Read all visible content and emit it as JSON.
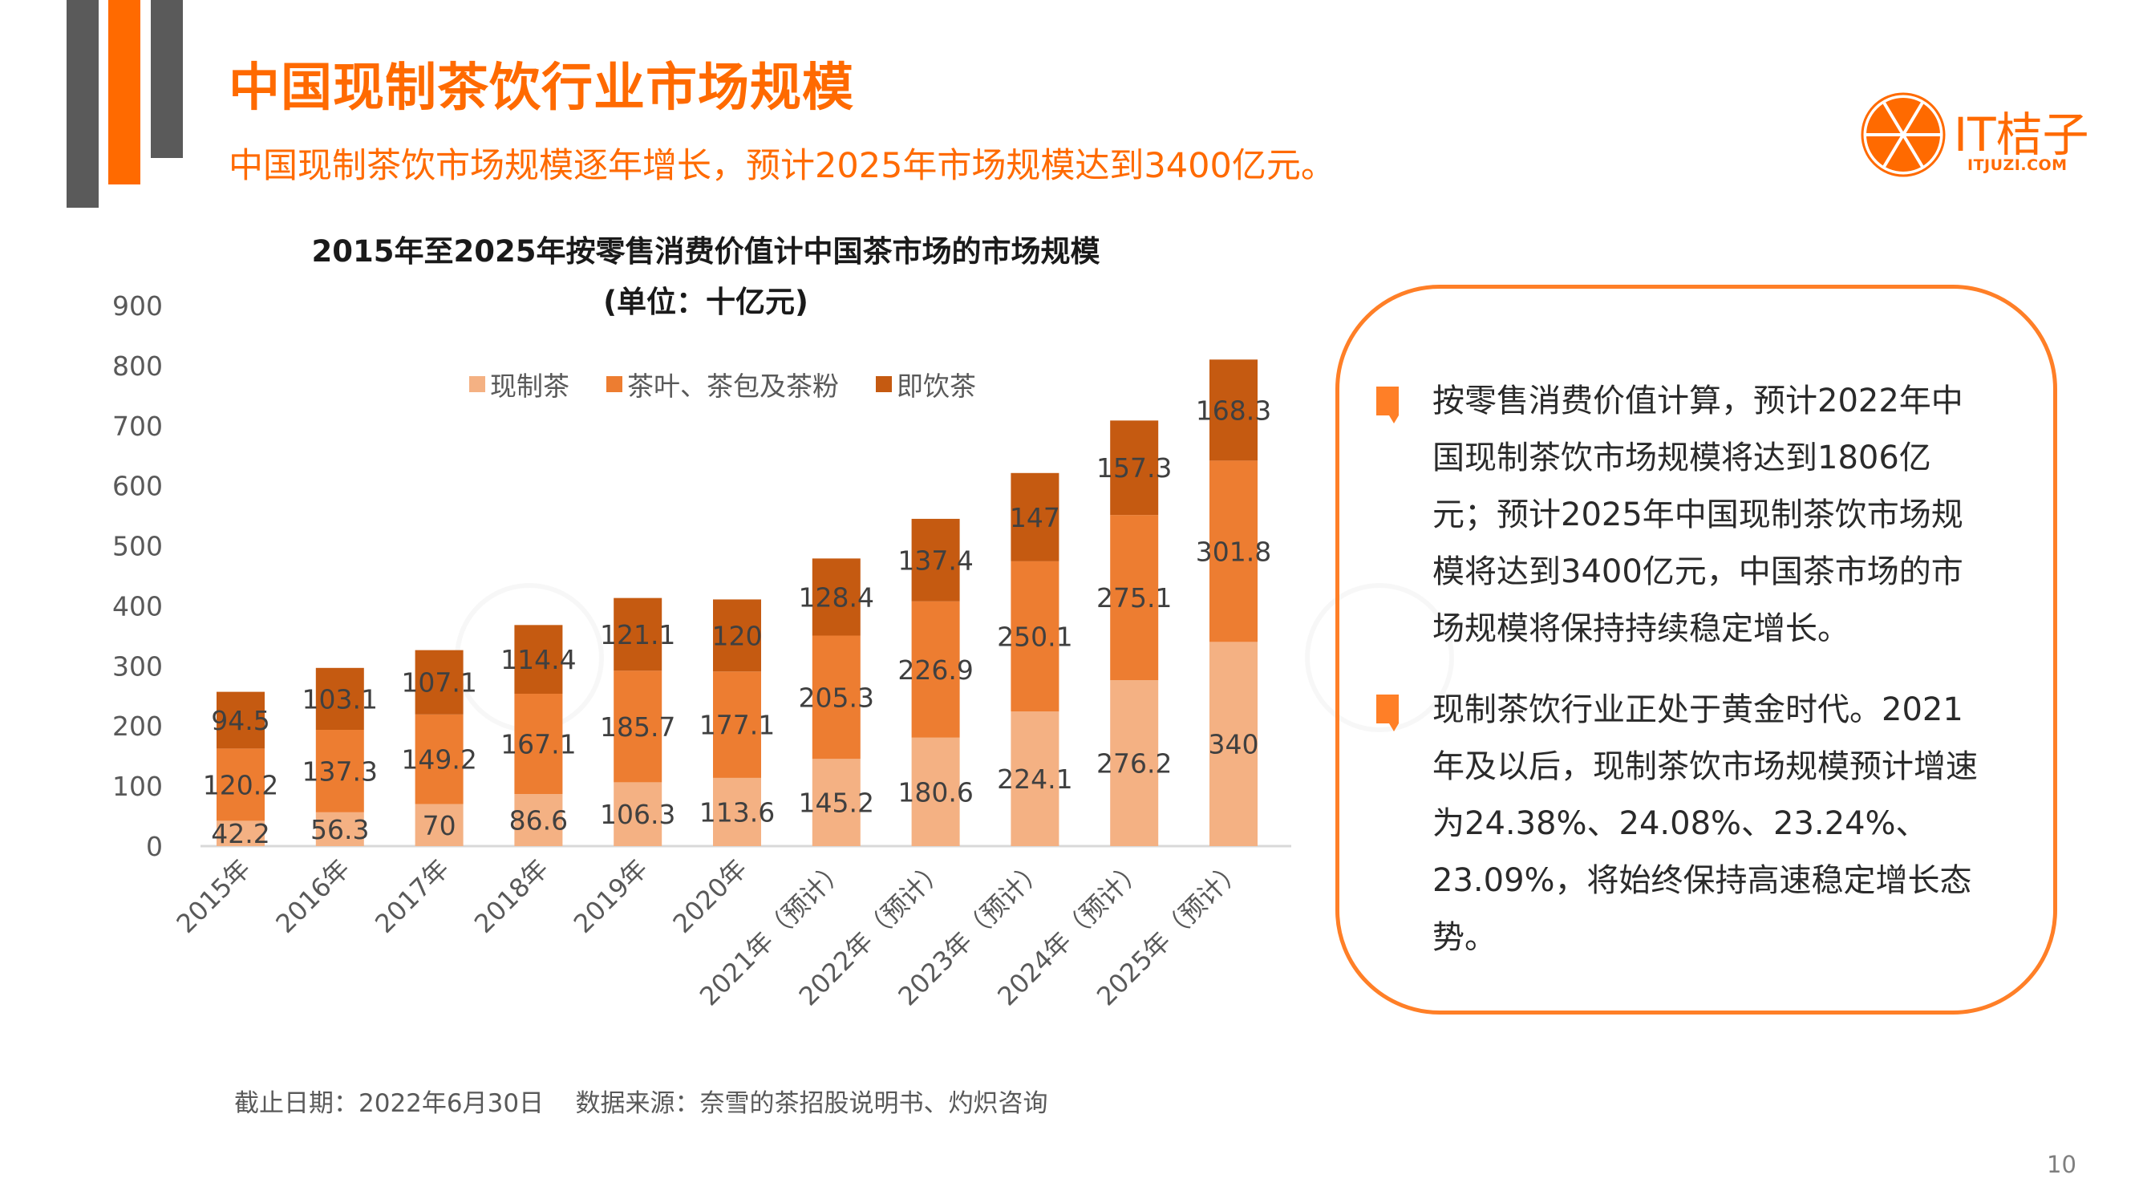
{
  "header": {
    "title": "中国现制茶饮行业市场规模",
    "subtitle": "中国现制茶饮市场规模逐年增长，预计2025年市场规模达到3400亿元。"
  },
  "logo": {
    "name": "IT桔子",
    "url": "ITJUZI.COM",
    "color": "#ff6a00"
  },
  "colors": {
    "accent": "#ff6a00",
    "box_border": "#ff7f27",
    "deco_gray": "#5a5a5a"
  },
  "chart_data": {
    "type": "bar",
    "stacked": true,
    "title": "2015年至2025年按零售消费价值计中国茶市场的市场规模",
    "subtitle": "(单位：十亿元)",
    "xlabel": "",
    "ylabel": "",
    "ylim": [
      0,
      900
    ],
    "yticks": [
      0,
      100,
      200,
      300,
      400,
      500,
      600,
      700,
      800,
      900
    ],
    "grid": false,
    "legend_position": "top",
    "categories": [
      "2015年",
      "2016年",
      "2017年",
      "2018年",
      "2019年",
      "2020年",
      "2021年（预计）",
      "2022年（预计）",
      "2023年（预计）",
      "2024年（预计）",
      "2025年（预计）"
    ],
    "series": [
      {
        "name": "现制茶",
        "color": "#F4B183",
        "values": [
          42.2,
          56.3,
          70,
          86.6,
          106.3,
          113.6,
          145.2,
          180.6,
          224.1,
          276.2,
          340
        ]
      },
      {
        "name": "茶叶、茶包及茶粉",
        "color": "#ED7D31",
        "values": [
          120.2,
          137.3,
          149.2,
          167.1,
          185.7,
          177.1,
          205.3,
          226.9,
          250.1,
          275.1,
          301.8
        ]
      },
      {
        "name": "即饮茶",
        "color": "#C55A11",
        "values": [
          94.5,
          103.1,
          107.1,
          114.4,
          121.1,
          120,
          128.4,
          137.4,
          147,
          157.3,
          168.3
        ]
      }
    ]
  },
  "insights": [
    {
      "text": "按零售消费价值计算，预计2022年中国现制茶饮市场规模将达到1806亿元；预计2025年中国现制茶饮市场规模将达到3400亿元，中国茶市场的市场规模将保持持续稳定增长。"
    },
    {
      "text": "现制茶饮行业正处于黄金时代。2021年及以后，现制茶饮市场规模预计增速为24.38%、24.08%、23.24%、23.09%，将始终保持高速稳定增长态势。"
    }
  ],
  "footer": {
    "text": "截止日期：2022年6月30日    数据来源：奈雪的茶招股说明书、灼炽咨询"
  },
  "page_number": "10"
}
